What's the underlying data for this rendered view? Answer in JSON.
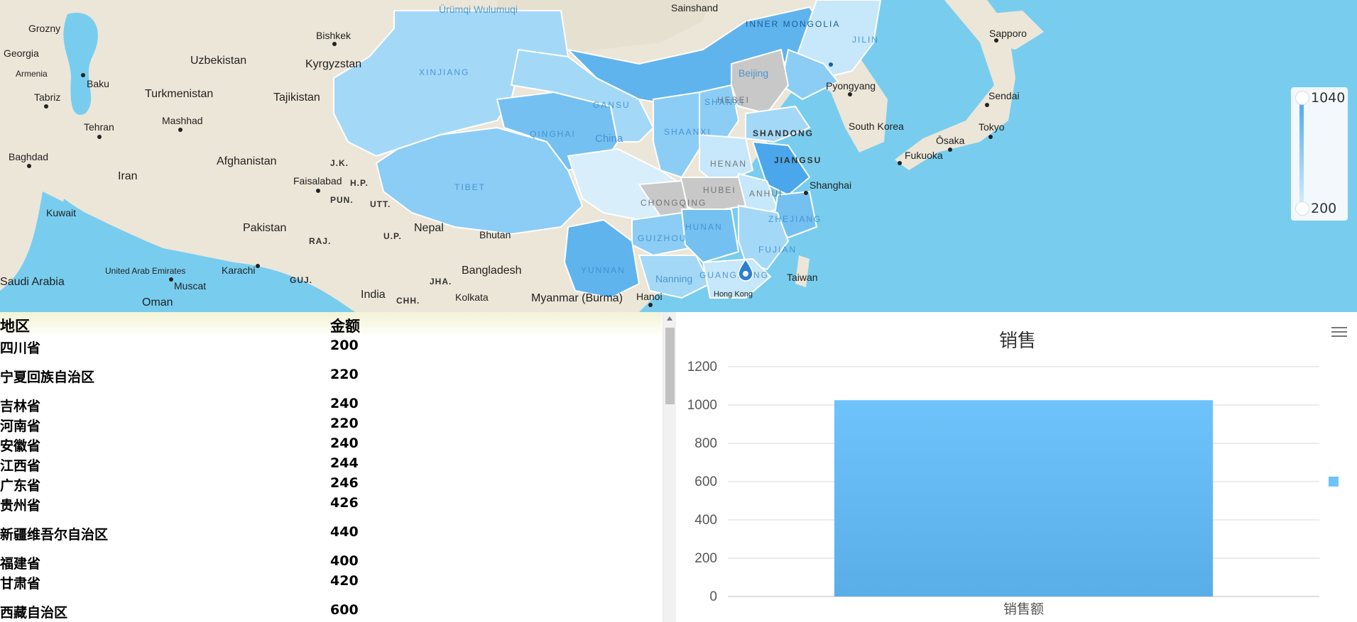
{
  "map": {
    "cities": [
      "Grozny",
      "Bishkek",
      "Sainshand",
      "Sapporo",
      "Baku",
      "Georgia",
      "Armenia",
      "Tabriz",
      "Tehran",
      "Mashhad",
      "Baghdad",
      "Kuwait",
      "Faisalabad",
      "Karachi",
      "Muscat",
      "Oman",
      "Saudi Arabia",
      "United Arab Emirates",
      "India",
      "Bangladesh",
      "Myanmar (Burma)",
      "Nepal",
      "Bhutan",
      "Kolkata",
      "Pyongyang",
      "Sendai",
      "Tokyo",
      "Ōsaka",
      "Fukuoka",
      "Shanghai",
      "Hong Kong",
      "Nanning",
      "Beijing",
      "Ürümqi Wulumuqi",
      "China",
      "Taiwan",
      "Hanoi"
    ],
    "countries": [
      "Uzbekistan",
      "Kyrgyzstan",
      "Turkmenistan",
      "Tajikistan",
      "Afghanistan",
      "Iran",
      "Pakistan",
      "South Korea"
    ],
    "states": [
      "J.K.",
      "H.P.",
      "PUN.",
      "UTT.",
      "RAJ.",
      "U.P.",
      "GUJ.",
      "JHA.",
      "CHH."
    ],
    "provinces": [
      "XINJIANG",
      "INNER MONGOLIA",
      "JILIN",
      "GANSU",
      "QINGHAI",
      "TIBET",
      "SHAANXI",
      "SHANXI",
      "SHANDONG",
      "HENAN",
      "HUBEI",
      "JIANGSU",
      "ANHUI",
      "CHONGQING",
      "GUIZHOU",
      "HUNAN",
      "ZHEJIANG",
      "FUJIAN",
      "YUNNAN",
      "GUANGDONG",
      "HEBEI"
    ],
    "colors": {
      "ocean": "#78cdef",
      "land": "#ece6d8",
      "highlight_dark": "#4aa7ec",
      "highlight_light": "#d5ecfb",
      "gray": "#c8c8c8"
    }
  },
  "legend": {
    "max": "1040",
    "min": "200"
  },
  "table": {
    "headers": [
      "地区",
      "金额"
    ],
    "rows": [
      [
        "四川省",
        "200"
      ],
      [
        "宁夏回族自治区",
        "220"
      ],
      [
        "吉林省",
        "240"
      ],
      [
        "河南省",
        "220"
      ],
      [
        "安徽省",
        "240"
      ],
      [
        "江西省",
        "244"
      ],
      [
        "广东省",
        "246"
      ],
      [
        "贵州省",
        "426"
      ],
      [
        "新疆维吾尔自治区",
        "440"
      ],
      [
        "福建省",
        "400"
      ],
      [
        "甘肃省",
        "420"
      ],
      [
        "西藏自治区",
        "600"
      ]
    ]
  },
  "chart_data": {
    "type": "bar",
    "title": "销售",
    "categories": [
      "销售额"
    ],
    "values": [
      1025
    ],
    "ylim": [
      0,
      1200
    ],
    "yticks": [
      0,
      200,
      400,
      600,
      800,
      1000,
      1200
    ],
    "grid": true,
    "bar_color_top": "#6ec3fb",
    "bar_color_bottom": "#5aaee8",
    "legend_swatch_color": "#6ec3fb",
    "legend_placement": "right"
  }
}
